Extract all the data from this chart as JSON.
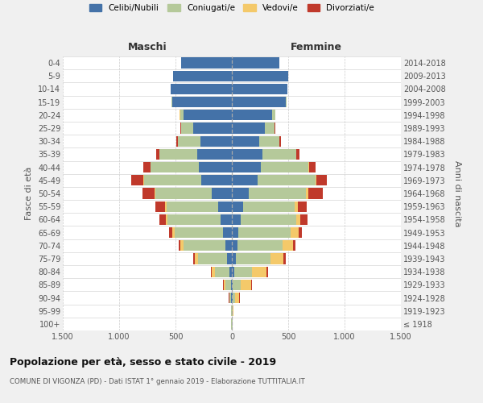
{
  "age_groups": [
    "100+",
    "95-99",
    "90-94",
    "85-89",
    "80-84",
    "75-79",
    "70-74",
    "65-69",
    "60-64",
    "55-59",
    "50-54",
    "45-49",
    "40-44",
    "35-39",
    "30-34",
    "25-29",
    "20-24",
    "15-19",
    "10-14",
    "5-9",
    "0-4"
  ],
  "birth_years": [
    "≤ 1918",
    "1919-1923",
    "1924-1928",
    "1929-1933",
    "1934-1938",
    "1939-1943",
    "1944-1948",
    "1949-1953",
    "1954-1958",
    "1959-1963",
    "1964-1968",
    "1969-1973",
    "1974-1978",
    "1979-1983",
    "1984-1988",
    "1989-1993",
    "1994-1998",
    "1999-2003",
    "2004-2008",
    "2009-2013",
    "2014-2018"
  ],
  "maschi": {
    "celibi": [
      2,
      3,
      5,
      10,
      20,
      40,
      60,
      80,
      100,
      120,
      180,
      270,
      290,
      310,
      280,
      340,
      430,
      530,
      540,
      520,
      450
    ],
    "coniugati": [
      2,
      4,
      15,
      50,
      130,
      260,
      370,
      430,
      470,
      460,
      500,
      510,
      430,
      330,
      200,
      110,
      30,
      5,
      2,
      1,
      1
    ],
    "vedovi": [
      0,
      1,
      5,
      15,
      30,
      30,
      25,
      20,
      15,
      10,
      5,
      5,
      3,
      2,
      1,
      1,
      1,
      0,
      0,
      0,
      0
    ],
    "divorziati": [
      0,
      0,
      2,
      5,
      8,
      15,
      20,
      30,
      60,
      90,
      110,
      110,
      60,
      30,
      15,
      8,
      3,
      1,
      0,
      0,
      0
    ]
  },
  "femmine": {
    "nubili": [
      2,
      3,
      5,
      10,
      18,
      35,
      50,
      60,
      80,
      100,
      150,
      230,
      260,
      270,
      240,
      290,
      360,
      480,
      490,
      500,
      420
    ],
    "coniugate": [
      2,
      5,
      20,
      70,
      160,
      310,
      400,
      460,
      490,
      460,
      510,
      510,
      420,
      300,
      180,
      90,
      25,
      5,
      1,
      1,
      0
    ],
    "vedove": [
      2,
      8,
      40,
      90,
      130,
      110,
      90,
      70,
      40,
      25,
      15,
      10,
      5,
      3,
      2,
      1,
      1,
      0,
      0,
      0,
      0
    ],
    "divorziate": [
      0,
      1,
      3,
      8,
      12,
      20,
      25,
      30,
      60,
      80,
      130,
      90,
      60,
      25,
      15,
      5,
      2,
      1,
      0,
      0,
      0
    ]
  },
  "colors": {
    "celibi": "#4472a8",
    "coniugati": "#b5c99a",
    "vedovi": "#f4c96a",
    "divorziati": "#c0392b"
  },
  "title": "Popolazione per età, sesso e stato civile - 2019",
  "subtitle": "COMUNE DI VIGONZA (PD) - Dati ISTAT 1° gennaio 2019 - Elaborazione TUTTITALIA.IT",
  "xlabel_left": "Maschi",
  "xlabel_right": "Femmine",
  "ylabel_left": "Fasce di età",
  "ylabel_right": "Anni di nascita",
  "xlim": 1500,
  "bg_color": "#f0f0f0",
  "plot_bg": "#ffffff",
  "grid_color": "#cccccc"
}
